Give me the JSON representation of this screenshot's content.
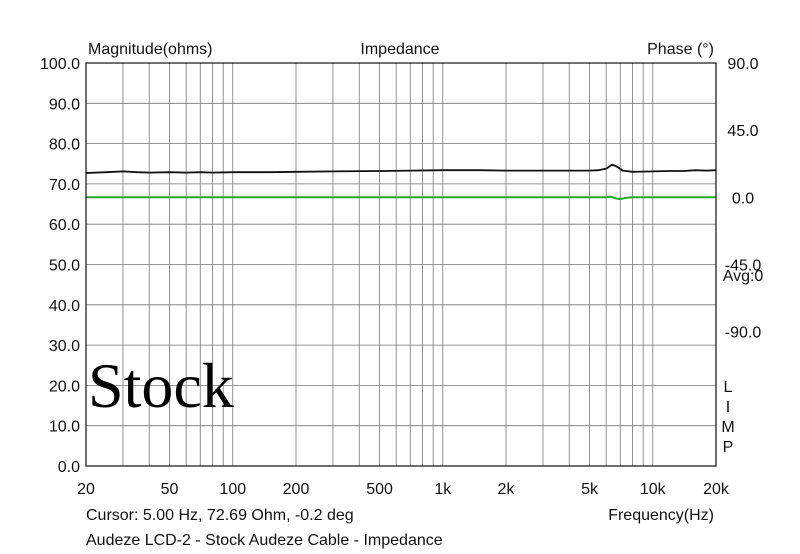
{
  "chart_data": {
    "type": "line",
    "title": "Impedance",
    "left_axis_label": "Magnitude(ohms)",
    "right_axis_label": "Phase (°)",
    "xlabel": "Frequency(Hz)",
    "x_scale": "log",
    "xlim": [
      20,
      20000
    ],
    "x_ticks": [
      {
        "value": 20,
        "label": "20"
      },
      {
        "value": 50,
        "label": "50"
      },
      {
        "value": 100,
        "label": "100"
      },
      {
        "value": 200,
        "label": "200"
      },
      {
        "value": 500,
        "label": "500"
      },
      {
        "value": 1000,
        "label": "1k"
      },
      {
        "value": 2000,
        "label": "2k"
      },
      {
        "value": 5000,
        "label": "5k"
      },
      {
        "value": 10000,
        "label": "10k"
      },
      {
        "value": 20000,
        "label": "20k"
      }
    ],
    "ylim": [
      0,
      100
    ],
    "y_ticks": [
      "100.0",
      "90.0",
      "80.0",
      "70.0",
      "60.0",
      "50.0",
      "40.0",
      "30.0",
      "20.0",
      "10.0",
      "0.0"
    ],
    "y2lim": [
      -180,
      90
    ],
    "y2_ticks": [
      {
        "value": 90,
        "label": "90.0"
      },
      {
        "value": 45,
        "label": "45.0"
      },
      {
        "value": 0,
        "label": "0.0"
      },
      {
        "value": -45,
        "label": "-45.0"
      },
      {
        "value": -90,
        "label": "-90.0"
      }
    ],
    "grid": true,
    "avg_label": "Avg:0",
    "side_letters": [
      "L",
      "I",
      "M",
      "P"
    ],
    "annotation": "Stock",
    "cursor_text": "Cursor: 5.00 Hz, 72.69 Ohm, -0.2 deg",
    "caption": "Audeze LCD-2 - Stock Audeze Cable - Impedance",
    "colors": {
      "magnitude": "#111111",
      "phase": "#22aa22",
      "grid": "#777777"
    },
    "series": [
      {
        "axis": "left",
        "color": "#111111",
        "points": [
          [
            20,
            72.7
          ],
          [
            25,
            72.9
          ],
          [
            30,
            73.1
          ],
          [
            35,
            72.9
          ],
          [
            40,
            72.8
          ],
          [
            50,
            72.9
          ],
          [
            60,
            72.8
          ],
          [
            70,
            72.9
          ],
          [
            80,
            72.8
          ],
          [
            100,
            72.9
          ],
          [
            150,
            72.9
          ],
          [
            200,
            73.0
          ],
          [
            300,
            73.1
          ],
          [
            500,
            73.2
          ],
          [
            700,
            73.3
          ],
          [
            1000,
            73.4
          ],
          [
            1500,
            73.4
          ],
          [
            2000,
            73.3
          ],
          [
            3000,
            73.3
          ],
          [
            4000,
            73.3
          ],
          [
            5000,
            73.3
          ],
          [
            5500,
            73.4
          ],
          [
            6000,
            73.8
          ],
          [
            6400,
            74.8
          ],
          [
            6800,
            74.2
          ],
          [
            7200,
            73.3
          ],
          [
            8000,
            73.0
          ],
          [
            10000,
            73.1
          ],
          [
            12000,
            73.2
          ],
          [
            14000,
            73.2
          ],
          [
            16000,
            73.4
          ],
          [
            18000,
            73.3
          ],
          [
            20000,
            73.4
          ]
        ]
      },
      {
        "axis": "right",
        "color": "#22aa22",
        "points": [
          [
            20,
            0
          ],
          [
            1000,
            0
          ],
          [
            5000,
            0
          ],
          [
            6000,
            0
          ],
          [
            6300,
            0.5
          ],
          [
            6700,
            -0.8
          ],
          [
            7000,
            -1.1
          ],
          [
            7500,
            -0.3
          ],
          [
            8000,
            0
          ],
          [
            12000,
            0
          ],
          [
            20000,
            0
          ]
        ]
      }
    ]
  }
}
